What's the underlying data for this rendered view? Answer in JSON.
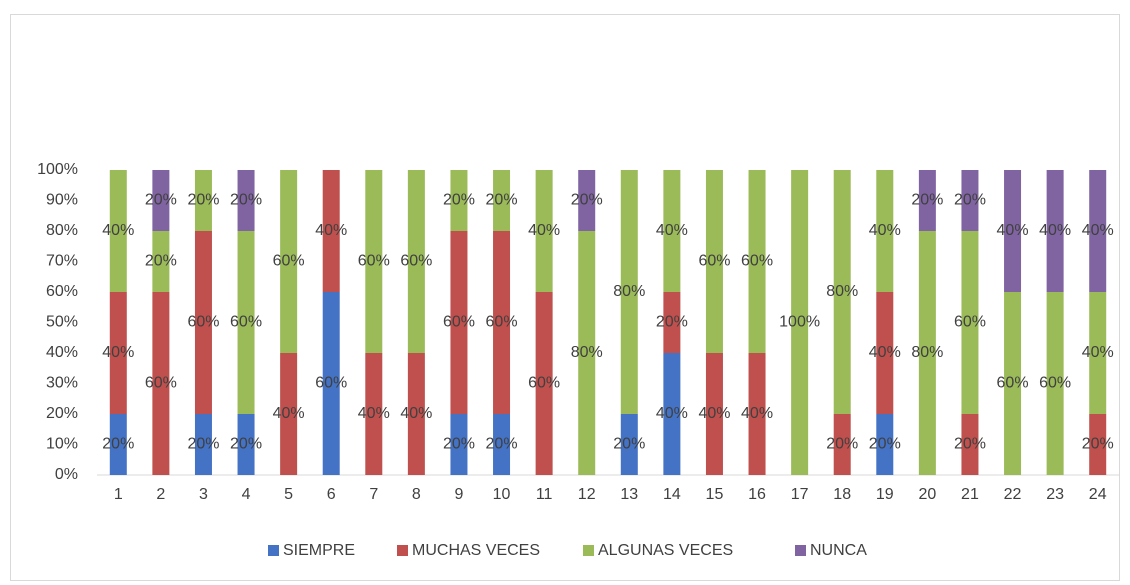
{
  "chart_data": {
    "type": "stacked_bar_percent",
    "categories": [
      "1",
      "2",
      "3",
      "4",
      "5",
      "6",
      "7",
      "8",
      "9",
      "10",
      "11",
      "12",
      "13",
      "14",
      "15",
      "16",
      "17",
      "18",
      "19",
      "20",
      "21",
      "22",
      "23",
      "24"
    ],
    "series": [
      {
        "name": "SIEMPRE",
        "color": "#4472c4",
        "values": [
          20,
          0,
          20,
          20,
          0,
          60,
          0,
          0,
          20,
          20,
          0,
          0,
          20,
          40,
          0,
          0,
          0,
          0,
          20,
          0,
          0,
          0,
          0,
          0
        ],
        "value_labels": [
          "20%",
          "0%",
          "20%",
          "20%",
          "0%",
          "60%",
          "0%",
          "0%",
          "20%",
          "20%",
          "0%",
          "0%",
          "20%",
          "40%",
          "0%",
          "0%",
          "0%",
          "0%",
          "20%",
          "0%",
          "0%",
          "0%",
          "0%",
          "0%"
        ]
      },
      {
        "name": "MUCHAS VECES",
        "color": "#c0504d",
        "values": [
          40,
          60,
          60,
          0,
          40,
          40,
          40,
          40,
          60,
          60,
          60,
          0,
          0,
          20,
          40,
          40,
          0,
          20,
          40,
          0,
          20,
          0,
          0,
          20
        ],
        "value_labels": [
          "40%",
          "60%",
          "60%",
          "0%",
          "40%",
          "40%",
          "40%",
          "40%",
          "60%",
          "60%",
          "60%",
          "0%",
          "0%",
          "20%",
          "40%",
          "40%",
          "0%",
          "20%",
          "40%",
          "0%",
          "20%",
          "0%",
          "0%",
          "20%"
        ]
      },
      {
        "name": "ALGUNAS VECES",
        "color": "#9bbb59",
        "values": [
          40,
          20,
          20,
          60,
          60,
          0,
          60,
          60,
          20,
          20,
          40,
          80,
          80,
          40,
          60,
          60,
          100,
          80,
          40,
          80,
          60,
          60,
          60,
          40
        ],
        "value_labels": [
          "40%",
          "20%",
          "20%",
          "60%",
          "60%",
          "0%",
          "60%",
          "60%",
          "20%",
          "20%",
          "40%",
          "80%",
          "80%",
          "40%",
          "60%",
          "60%",
          "100%",
          "80%",
          "40%",
          "80%",
          "60%",
          "60%",
          "60%",
          "40%"
        ]
      },
      {
        "name": "NUNCA",
        "color": "#8064a2",
        "values": [
          0,
          20,
          0,
          20,
          0,
          0,
          0,
          0,
          0,
          0,
          0,
          20,
          0,
          0,
          0,
          0,
          0,
          0,
          0,
          20,
          20,
          40,
          40,
          40
        ],
        "value_labels": [
          "0%",
          "20%",
          "0%",
          "20%",
          "0%",
          "0%",
          "0%",
          "0%",
          "0%",
          "0%",
          "0%",
          "20%",
          "0%",
          "0%",
          "0%",
          "0%",
          "0%",
          "0%",
          "0%",
          "20%",
          "20%",
          "40%",
          "40%",
          "40%"
        ]
      }
    ],
    "ylim": [
      0,
      100
    ],
    "yticks": [
      {
        "value": 0,
        "label": "0%"
      },
      {
        "value": 10,
        "label": "10%"
      },
      {
        "value": 20,
        "label": "20%"
      },
      {
        "value": 30,
        "label": "30%"
      },
      {
        "value": 40,
        "label": "40%"
      },
      {
        "value": 50,
        "label": "50%"
      },
      {
        "value": 60,
        "label": "60%"
      },
      {
        "value": 70,
        "label": "70%"
      },
      {
        "value": 80,
        "label": "80%"
      },
      {
        "value": 90,
        "label": "90%"
      },
      {
        "value": 100,
        "label": "100%"
      }
    ],
    "grid": false,
    "legend": "bottom"
  }
}
